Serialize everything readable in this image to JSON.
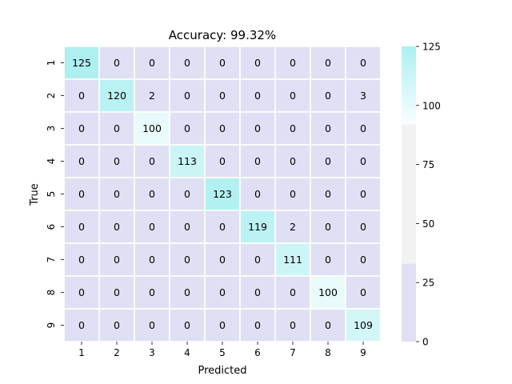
{
  "chart_data": {
    "type": "heatmap",
    "title": "Accuracy: 99.32%",
    "xlabel": "Predicted",
    "ylabel": "True",
    "x_categories": [
      "1",
      "2",
      "3",
      "4",
      "5",
      "6",
      "7",
      "8",
      "9"
    ],
    "y_categories": [
      "1",
      "2",
      "3",
      "4",
      "5",
      "6",
      "7",
      "8",
      "9"
    ],
    "values": [
      [
        125,
        0,
        0,
        0,
        0,
        0,
        0,
        0,
        0
      ],
      [
        0,
        120,
        2,
        0,
        0,
        0,
        0,
        0,
        3
      ],
      [
        0,
        0,
        100,
        0,
        0,
        0,
        0,
        0,
        0
      ],
      [
        0,
        0,
        0,
        113,
        0,
        0,
        0,
        0,
        0
      ],
      [
        0,
        0,
        0,
        0,
        123,
        0,
        0,
        0,
        0
      ],
      [
        0,
        0,
        0,
        0,
        0,
        119,
        2,
        0,
        0
      ],
      [
        0,
        0,
        0,
        0,
        0,
        0,
        111,
        0,
        0
      ],
      [
        0,
        0,
        0,
        0,
        0,
        0,
        0,
        100,
        0
      ],
      [
        0,
        0,
        0,
        0,
        0,
        0,
        0,
        0,
        109
      ]
    ],
    "colorbar": {
      "range": [
        0,
        125
      ],
      "ticks": [
        0,
        25,
        50,
        75,
        100,
        125
      ],
      "bands": [
        {
          "from": 0,
          "to": 33,
          "color": "#e0e0f4"
        },
        {
          "from": 33,
          "to": 92,
          "color": "#f2f2f2"
        },
        {
          "from": 92,
          "to": 125,
          "color_from": "#fafeff",
          "color_to": "#aeeff0"
        }
      ]
    },
    "grid_line_color": "#ffffff",
    "legend": "right colorbar"
  }
}
